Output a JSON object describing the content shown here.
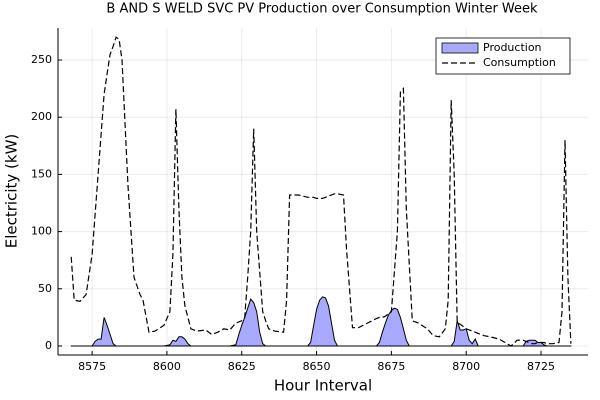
{
  "chart_data": {
    "type": "area-line",
    "title": "B AND S WELD SVC PV Production over Consumption Winter Week",
    "x_label": "Hour Interval",
    "y_label": "Electricity (kW)",
    "x": [
      8568,
      8569,
      8571,
      8573,
      8575,
      8576,
      8577,
      8578,
      8579,
      8580,
      8581,
      8582,
      8583,
      8584,
      8585,
      8587,
      8589,
      8591,
      8592,
      8594,
      8596,
      8599,
      8601,
      8602,
      8603,
      8604,
      8605,
      8606,
      8607,
      8608,
      8610,
      8613,
      8615,
      8617,
      8619,
      8621,
      8623,
      8624,
      8625,
      8626,
      8627,
      8628,
      8629,
      8630,
      8631,
      8632,
      8633,
      8634,
      8636,
      8639,
      8640,
      8641,
      8644,
      8647,
      8648,
      8649,
      8650,
      8651,
      8652,
      8653,
      8654,
      8655,
      8656,
      8657,
      8659,
      8660,
      8662,
      8664,
      8667,
      8670,
      8671,
      8672,
      8673,
      8674,
      8675,
      8676,
      8677,
      8678,
      8679,
      8680,
      8681,
      8682,
      8684,
      8687,
      8689,
      8691,
      8693,
      8694,
      8695,
      8696,
      8697,
      8698,
      8699,
      8700,
      8701,
      8702,
      8703,
      8704,
      8706,
      8708,
      8711,
      8713,
      8715,
      8717,
      8719,
      8720,
      8721,
      8722,
      8723,
      8724,
      8725,
      8726,
      8727,
      8729,
      8731,
      8732,
      8733,
      8734,
      8735
    ],
    "series": [
      {
        "name": "Production",
        "color": "#a9a9ff",
        "style": "area",
        "values": [
          0,
          0,
          0,
          0,
          0,
          4,
          6,
          6,
          25,
          18,
          10,
          2,
          0,
          0,
          0,
          0,
          0,
          0,
          0,
          0,
          0,
          0,
          1,
          5,
          4,
          8,
          8,
          6,
          2,
          0,
          0,
          0,
          0,
          0,
          0,
          0,
          1,
          10,
          18,
          25,
          33,
          41,
          38,
          30,
          12,
          2,
          0,
          0,
          0,
          0,
          0,
          0,
          0,
          0,
          3,
          18,
          32,
          40,
          43,
          42,
          35,
          20,
          5,
          0,
          0,
          0,
          0,
          0,
          0,
          0,
          3,
          12,
          20,
          27,
          31,
          33,
          32,
          25,
          15,
          5,
          0,
          0,
          0,
          0,
          0,
          0,
          0,
          0,
          0,
          4,
          22,
          14,
          14,
          15,
          5,
          2,
          6,
          0,
          0,
          0,
          0,
          0,
          0,
          0,
          0,
          4,
          5,
          5,
          5,
          3,
          3,
          1,
          0,
          0,
          0,
          0,
          0,
          0,
          0
        ]
      },
      {
        "name": "Consumption",
        "color": "#000000",
        "style": "dashed",
        "values": [
          78,
          40,
          39,
          45,
          80,
          115,
          150,
          185,
          220,
          238,
          255,
          262,
          270,
          268,
          250,
          140,
          60,
          45,
          40,
          12,
          13,
          18,
          30,
          80,
          207,
          120,
          60,
          35,
          25,
          15,
          13,
          14,
          10,
          12,
          15,
          14,
          20,
          21,
          22,
          25,
          60,
          100,
          190,
          100,
          65,
          30,
          22,
          15,
          13,
          12,
          40,
          132,
          132,
          130,
          130,
          130,
          129,
          129,
          129,
          130,
          131,
          132,
          133,
          133,
          132,
          85,
          16,
          16,
          20,
          24,
          25,
          25,
          26,
          28,
          30,
          65,
          100,
          222,
          225,
          120,
          71,
          22,
          20,
          15,
          9,
          8,
          15,
          40,
          215,
          150,
          20,
          19,
          17,
          15,
          14,
          13,
          12,
          11,
          9,
          8,
          6,
          3,
          0,
          5,
          5,
          4,
          3,
          2,
          2,
          3,
          3,
          3,
          2,
          2,
          3,
          30,
          180,
          60,
          2
        ]
      }
    ],
    "xlim": [
      8563.6,
      8740.7
    ],
    "ylim": [
      -7.9,
      278
    ],
    "xticks": [
      8575,
      8600,
      8625,
      8650,
      8675,
      8700,
      8725
    ],
    "yticks": [
      0,
      50,
      100,
      150,
      200,
      250
    ],
    "grid": true,
    "legend": "top-right"
  }
}
